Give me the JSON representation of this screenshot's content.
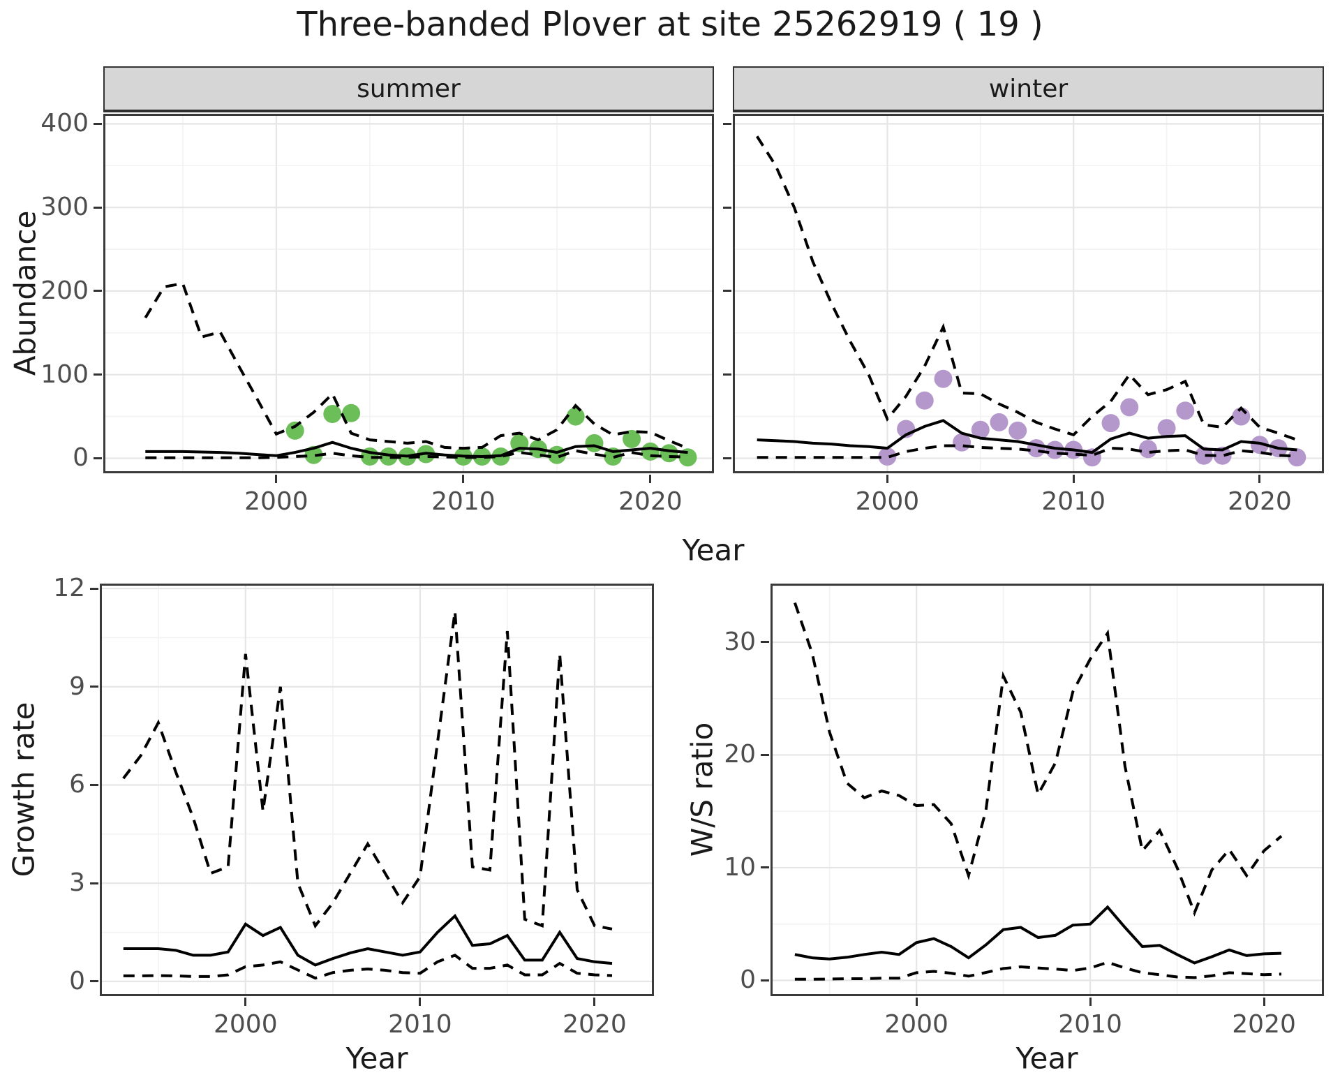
{
  "title": "Three-banded Plover at site 25262919 ( 19 )",
  "facets": [
    {
      "label": "summer"
    },
    {
      "label": "winter"
    }
  ],
  "axes": {
    "x": "Year",
    "abundance": "Abundance",
    "growth": "Growth rate",
    "ws": "W/S ratio"
  },
  "colors": {
    "summer_dot": "#6cbe59",
    "winter_dot": "#b598cb",
    "line": "#000000",
    "grid_major": "#e6e6e6",
    "grid_minor": "#f2f2f2",
    "strip_bg": "#d6d6d6",
    "panel_border": "#3a3a3a",
    "axis_text": "#4d4d4d"
  },
  "chart_data": [
    {
      "id": "abundance_summer",
      "type": "line",
      "facet": "summer",
      "xlabel": "Year",
      "ylabel": "Abundance",
      "xlim": [
        1990.75,
        2023.4
      ],
      "ylim": [
        -18,
        412
      ],
      "xticks": [
        2000,
        2010,
        2020
      ],
      "xticks_minor": [
        1995,
        2005,
        2015
      ],
      "yticks": [
        0,
        100,
        200,
        300,
        400
      ],
      "yticks_minor": [
        50,
        150,
        250,
        350
      ],
      "dot_color": "#6cbe59",
      "years": [
        1993,
        1994,
        1995,
        1996,
        1997,
        1998,
        1999,
        2000,
        2001,
        2002,
        2003,
        2004,
        2005,
        2006,
        2007,
        2008,
        2009,
        2010,
        2011,
        2012,
        2013,
        2014,
        2015,
        2016,
        2017,
        2018,
        2019,
        2020,
        2021,
        2022
      ],
      "fit": [
        8,
        8,
        8,
        7.5,
        7,
        6,
        4.5,
        3,
        7,
        12,
        19,
        12,
        7,
        4,
        2.5,
        6,
        4,
        2.5,
        2,
        3,
        12,
        11,
        7,
        14,
        15,
        8,
        10,
        12,
        9,
        7
      ],
      "upper": [
        168,
        205,
        209,
        145,
        151,
        110,
        70,
        29,
        38,
        55,
        77,
        30,
        22,
        20,
        18,
        20,
        13,
        12,
        13,
        27,
        30,
        22,
        34,
        63,
        41,
        28,
        32,
        31,
        21,
        12
      ],
      "lower": [
        0.5,
        0.5,
        0.5,
        0.5,
        0.5,
        0.5,
        0.5,
        1,
        2,
        3,
        6,
        3,
        1,
        1,
        1,
        2,
        1.5,
        1,
        1,
        2,
        7,
        4,
        1,
        9,
        5,
        1,
        7,
        3,
        2,
        1.5
      ],
      "obs_years": [
        2001,
        2002,
        2003,
        2004,
        2005,
        2006,
        2007,
        2008,
        2010,
        2011,
        2012,
        2013,
        2014,
        2015,
        2016,
        2017,
        2018,
        2019,
        2020,
        2021,
        2022
      ],
      "obs": [
        33,
        4,
        53,
        54,
        2,
        2,
        2,
        5,
        2,
        2,
        2,
        18,
        11,
        4,
        50,
        18,
        2,
        23,
        8,
        6,
        1
      ]
    },
    {
      "id": "abundance_winter",
      "type": "line",
      "facet": "winter",
      "xlabel": "Year",
      "ylabel": "Abundance",
      "xlim": [
        1991.7,
        2023.45
      ],
      "ylim": [
        -18,
        412
      ],
      "xticks": [
        2000,
        2010,
        2020
      ],
      "xticks_minor": [
        1995,
        2005,
        2015
      ],
      "yticks": [
        0,
        100,
        200,
        300,
        400
      ],
      "yticks_minor": [
        50,
        150,
        250,
        350
      ],
      "dot_color": "#b598cb",
      "years": [
        1993,
        1994,
        1995,
        1996,
        1997,
        1998,
        1999,
        2000,
        2001,
        2002,
        2003,
        2004,
        2005,
        2006,
        2007,
        2008,
        2009,
        2010,
        2011,
        2012,
        2013,
        2014,
        2015,
        2016,
        2017,
        2018,
        2019,
        2020,
        2021,
        2022
      ],
      "fit": [
        22,
        21,
        20,
        18,
        17,
        15,
        14,
        12,
        28,
        38,
        45,
        30,
        24,
        22,
        20,
        16,
        12,
        10,
        7,
        23,
        30,
        24,
        26,
        27,
        11,
        10,
        20,
        18,
        12,
        10
      ],
      "upper": [
        385,
        350,
        300,
        235,
        185,
        140,
        100,
        47,
        74,
        110,
        157,
        78,
        77,
        65,
        55,
        43,
        35,
        28,
        50,
        68,
        100,
        76,
        82,
        92,
        40,
        37,
        60,
        37,
        30,
        22
      ],
      "lower": [
        1,
        1,
        1,
        1,
        1,
        1,
        1,
        1,
        8,
        12,
        15,
        15,
        13,
        12,
        11,
        9,
        6,
        5,
        3.5,
        12,
        11,
        7,
        9,
        10,
        3.5,
        3,
        9,
        7,
        3.5,
        2.5
      ],
      "obs_years": [
        2000,
        2001,
        2002,
        2003,
        2004,
        2005,
        2006,
        2007,
        2008,
        2009,
        2010,
        2011,
        2012,
        2013,
        2014,
        2015,
        2016,
        2017,
        2018,
        2019,
        2020,
        2021,
        2022
      ],
      "obs": [
        2,
        35,
        69,
        95,
        19,
        34,
        43,
        33,
        12,
        10,
        10,
        1,
        42,
        61,
        11,
        36,
        57,
        3,
        3,
        50,
        16,
        12,
        1
      ]
    },
    {
      "id": "growth_rate",
      "type": "line",
      "xlabel": "Year",
      "ylabel": "Growth rate",
      "xlim": [
        1991.65,
        2023.4
      ],
      "ylim": [
        -0.45,
        12.15
      ],
      "xticks": [
        2000,
        2010,
        2020
      ],
      "xticks_minor": [
        1995,
        2005,
        2015
      ],
      "yticks": [
        0,
        3,
        6,
        9,
        12
      ],
      "yticks_minor": [
        1.5,
        4.5,
        7.5,
        10.5
      ],
      "years": [
        1993,
        1994,
        1995,
        1996,
        1997,
        1998,
        1999,
        2000,
        2001,
        2002,
        2003,
        2004,
        2005,
        2006,
        2007,
        2008,
        2009,
        2010,
        2011,
        2012,
        2013,
        2014,
        2015,
        2016,
        2017,
        2018,
        2019,
        2020,
        2021
      ],
      "fit": [
        1.0,
        1.0,
        1.0,
        0.95,
        0.8,
        0.8,
        0.9,
        1.75,
        1.4,
        1.65,
        0.8,
        0.5,
        0.7,
        0.87,
        1.0,
        0.9,
        0.8,
        0.9,
        1.5,
        2.0,
        1.1,
        1.15,
        1.4,
        0.65,
        0.65,
        1.5,
        0.7,
        0.6,
        0.55
      ],
      "upper": [
        6.2,
        6.9,
        7.9,
        6.4,
        5.0,
        3.3,
        3.5,
        10.0,
        5.2,
        9.0,
        3.0,
        1.7,
        2.4,
        3.3,
        4.2,
        3.3,
        2.4,
        3.2,
        7.3,
        11.3,
        3.5,
        3.4,
        10.7,
        1.9,
        1.7,
        10.0,
        2.8,
        1.7,
        1.6
      ],
      "lower": [
        0.17,
        0.17,
        0.18,
        0.17,
        0.15,
        0.15,
        0.2,
        0.45,
        0.5,
        0.6,
        0.35,
        0.1,
        0.27,
        0.34,
        0.38,
        0.34,
        0.27,
        0.25,
        0.6,
        0.8,
        0.4,
        0.4,
        0.5,
        0.2,
        0.2,
        0.55,
        0.25,
        0.2,
        0.18
      ]
    },
    {
      "id": "ws_ratio",
      "type": "line",
      "xlabel": "Year",
      "ylabel": "W/S ratio",
      "xlim": [
        1991.6,
        2023.45
      ],
      "ylim": [
        -1.4,
        35.2
      ],
      "xticks": [
        2000,
        2010,
        2020
      ],
      "xticks_minor": [
        1995,
        2005,
        2015
      ],
      "yticks": [
        0,
        10,
        20,
        30
      ],
      "yticks_minor": [
        5,
        15,
        25,
        35
      ],
      "years": [
        1993,
        1994,
        1995,
        1996,
        1997,
        1998,
        1999,
        2000,
        2001,
        2002,
        2003,
        2004,
        2005,
        2006,
        2007,
        2008,
        2009,
        2010,
        2011,
        2012,
        2013,
        2014,
        2015,
        2016,
        2017,
        2018,
        2019,
        2020,
        2021
      ],
      "fit": [
        2.3,
        2.0,
        1.9,
        2.05,
        2.3,
        2.5,
        2.3,
        3.35,
        3.7,
        3.0,
        2.0,
        3.15,
        4.5,
        4.7,
        3.8,
        4.0,
        4.9,
        5.0,
        6.5,
        4.7,
        3.0,
        3.1,
        2.3,
        1.55,
        2.1,
        2.7,
        2.2,
        2.35,
        2.4
      ],
      "upper": [
        33.5,
        29,
        22,
        17.5,
        16.2,
        16.8,
        16.4,
        15.5,
        15.6,
        13.9,
        9.3,
        15.1,
        27,
        23.8,
        16.5,
        19.3,
        25.6,
        28.5,
        30.8,
        19,
        11.5,
        13.3,
        10,
        6,
        9.8,
        11.6,
        9.3,
        11.5,
        12.8
      ],
      "lower": [
        0.1,
        0.1,
        0.12,
        0.15,
        0.15,
        0.2,
        0.2,
        0.68,
        0.8,
        0.64,
        0.37,
        0.7,
        1.05,
        1.2,
        1.1,
        1.0,
        0.87,
        1.1,
        1.6,
        1.1,
        0.68,
        0.5,
        0.3,
        0.25,
        0.4,
        0.68,
        0.6,
        0.5,
        0.56
      ]
    }
  ]
}
